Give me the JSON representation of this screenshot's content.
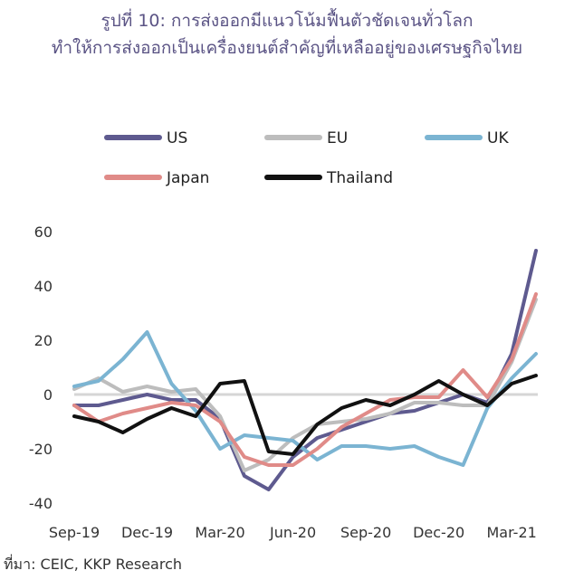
{
  "header": {
    "title_line1": "รูปที่ 10: การส่งออกมีแนวโน้มฟื้นตัวชัดเจนทั่วโลก",
    "title_line2": "ทำให้การส่งออกเป็นเครื่องยนต์สำคัญที่เหลืออยู่ของเศรษฐกิจไทย"
  },
  "footer": {
    "source": "ที่มา: CEIC, KKP Research"
  },
  "chart_data": {
    "type": "line",
    "x": [
      "Sep-19",
      "Oct-19",
      "Nov-19",
      "Dec-19",
      "Jan-20",
      "Feb-20",
      "Mar-20",
      "Apr-20",
      "May-20",
      "Jun-20",
      "Jul-20",
      "Aug-20",
      "Sep-20",
      "Oct-20",
      "Nov-20",
      "Dec-20",
      "Jan-21",
      "Feb-21",
      "Mar-21",
      "Apr-21"
    ],
    "x_tick_labels": [
      "Sep-19",
      "Dec-19",
      "Mar-20",
      "Jun-20",
      "Sep-20",
      "Dec-20",
      "Mar-21"
    ],
    "ylim": [
      -40,
      60
    ],
    "y_ticks": [
      -40,
      -20,
      0,
      20,
      40,
      60
    ],
    "grid": false,
    "legend_position": "top",
    "series": [
      {
        "name": "US",
        "color": "#5e5a8f",
        "values": [
          -4,
          -4,
          -2,
          0,
          -2,
          -2,
          -9,
          -30,
          -35,
          -23,
          -16,
          -13,
          -10,
          -7,
          -6,
          -3,
          0,
          -3,
          15,
          53
        ]
      },
      {
        "name": "EU",
        "color": "#bdbdbd",
        "values": [
          2,
          6,
          1,
          3,
          1,
          2,
          -8,
          -28,
          -24,
          -16,
          -11,
          -10,
          -9,
          -7,
          -3,
          -3,
          -4,
          -4,
          12,
          35
        ]
      },
      {
        "name": "UK",
        "color": "#7bb4d2",
        "values": [
          3,
          5,
          13,
          23,
          4,
          -6,
          -20,
          -15,
          -16,
          -17,
          -24,
          -19,
          -19,
          -20,
          -19,
          -23,
          -26,
          -5,
          6,
          15
        ]
      },
      {
        "name": "Japan",
        "color": "#e08b88",
        "values": [
          -4,
          -10,
          -7,
          -5,
          -3,
          -4,
          -10,
          -23,
          -26,
          -26,
          -20,
          -12,
          -7,
          -2,
          -1,
          -1,
          9,
          -1,
          13,
          37
        ]
      },
      {
        "name": "Thailand",
        "color": "#111111",
        "values": [
          -8,
          -10,
          -14,
          -9,
          -5,
          -8,
          4,
          5,
          -21,
          -22,
          -11,
          -5,
          -2,
          -4,
          0,
          5,
          0,
          -4,
          4,
          7
        ]
      }
    ]
  }
}
